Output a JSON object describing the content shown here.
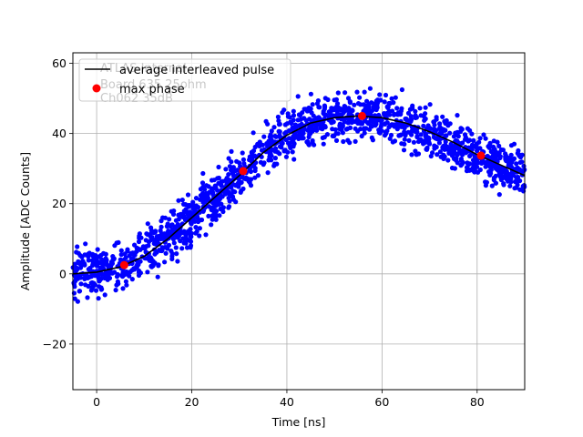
{
  "chart_data": {
    "type": "scatter",
    "title": "",
    "xlabel": "Time [ns]",
    "ylabel": "Amplitude [ADC Counts]",
    "xlim": [
      -5,
      90
    ],
    "ylim": [
      -33,
      63
    ],
    "xticks": [
      0,
      20,
      40,
      60,
      80
    ],
    "yticks": [
      -20,
      0,
      20,
      40,
      60
    ],
    "grid": true,
    "legend_position": "top-left",
    "background_annotation": [
      "ATLAS Internal",
      "Board 635 25ohm",
      "Ch062 35dB"
    ],
    "series": [
      {
        "name": "average interleaved pulse",
        "kind": "line",
        "color": "#000000",
        "x": [
          -5,
          0,
          5,
          10,
          15,
          20,
          25,
          30,
          35,
          40,
          45,
          50,
          55,
          60,
          65,
          70,
          75,
          80,
          85,
          90
        ],
        "y": [
          0,
          0.5,
          2,
          5,
          10,
          16,
          22,
          28,
          34.5,
          39.5,
          43,
          44.5,
          45,
          44.5,
          43,
          40.5,
          37.5,
          34,
          31,
          28
        ]
      },
      {
        "name": "max phase",
        "kind": "points",
        "color": "#ff0000",
        "x": [
          5.8,
          30.8,
          55.8,
          80.8
        ],
        "y": [
          2.5,
          29.3,
          45,
          33.7
        ]
      },
      {
        "name": "",
        "kind": "scatter-cloud",
        "color": "#0000ff",
        "note": "dense blue scatter of individual samples around the average pulse, spread about +/-6 ADC counts"
      }
    ]
  }
}
